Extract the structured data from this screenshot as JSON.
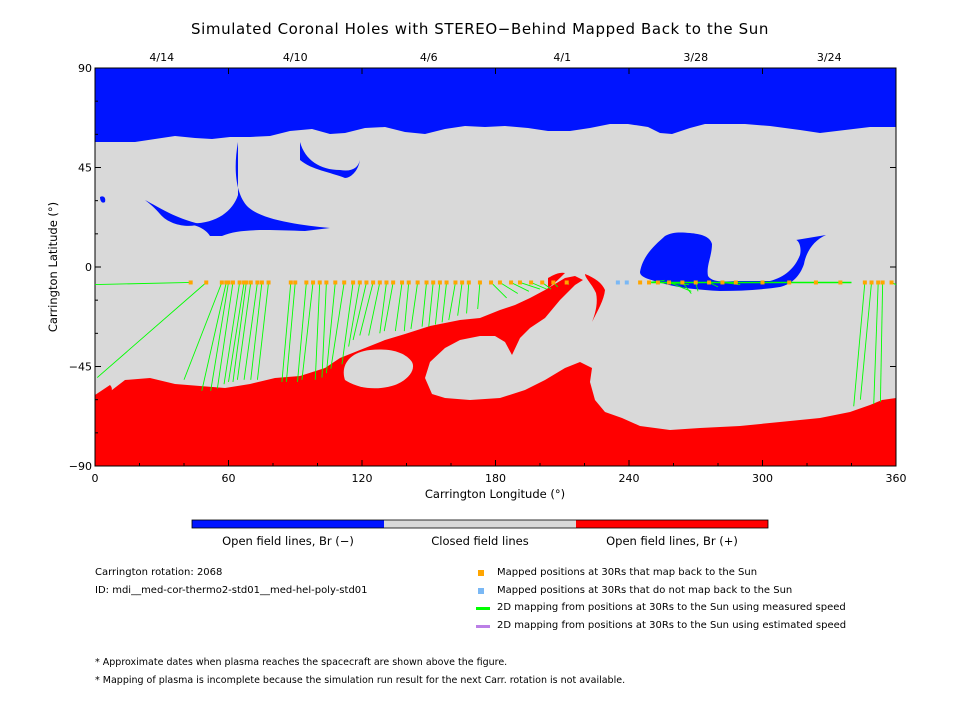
{
  "title": "Simulated Coronal Holes with STEREO−Behind Mapped Back to the Sun",
  "colors": {
    "open_negative": "#0014ff",
    "closed": "#d9d9d9",
    "open_positive": "#ff0000",
    "mapped_dot": "#ffa500",
    "unmapped_dot": "#7ab8f5",
    "measured_speed_line": "#00ff00",
    "estimated_speed_line": "#bb7fe6"
  },
  "chart_data": {
    "type": "heatmap",
    "xlabel": "Carrington Longitude (°)",
    "ylabel": "Carrington Latitude (°)",
    "xlim": [
      0,
      360
    ],
    "ylim": [
      -90,
      90
    ],
    "x_ticks": [
      "0",
      "60",
      "120",
      "180",
      "240",
      "300",
      "360"
    ],
    "y_ticks": [
      "90",
      "45",
      "0",
      "−45",
      "−90"
    ],
    "top_date_ticks": [
      {
        "label": "4/14",
        "lon": 30
      },
      {
        "label": "4/10",
        "lon": 90
      },
      {
        "label": "4/6",
        "lon": 150
      },
      {
        "label": "4/1",
        "lon": 210
      },
      {
        "label": "3/28",
        "lon": 270
      },
      {
        "label": "3/24",
        "lon": 330
      }
    ],
    "colorbar": [
      "Open field lines, Br (−)",
      "Closed field lines",
      "Open field lines, Br (+)"
    ],
    "spacecraft_latitude": -7,
    "mapped_points": [
      {
        "lon": 43,
        "foot_lon": -2,
        "foot_lat": -8
      },
      {
        "lon": 50,
        "foot_lon": 1,
        "foot_lat": -50
      },
      {
        "lon": 57,
        "foot_lon": 40,
        "foot_lat": -51
      },
      {
        "lon": 59,
        "foot_lon": 48,
        "foot_lat": -56
      },
      {
        "lon": 60,
        "foot_lon": 52,
        "foot_lat": -56
      },
      {
        "lon": 62,
        "foot_lon": 55,
        "foot_lat": -55
      },
      {
        "lon": 65,
        "foot_lon": 58,
        "foot_lat": -53
      },
      {
        "lon": 67,
        "foot_lon": 60,
        "foot_lat": -52
      },
      {
        "lon": 68,
        "foot_lon": 62,
        "foot_lat": -52
      },
      {
        "lon": 70,
        "foot_lon": 64,
        "foot_lat": -51
      },
      {
        "lon": 73,
        "foot_lon": 67,
        "foot_lat": -51
      },
      {
        "lon": 75,
        "foot_lon": 70,
        "foot_lat": -51
      },
      {
        "lon": 78,
        "foot_lon": 73,
        "foot_lat": -51
      },
      {
        "lon": 88,
        "foot_lon": 84,
        "foot_lat": -52
      },
      {
        "lon": 90,
        "foot_lon": 86,
        "foot_lat": -52
      },
      {
        "lon": 95,
        "foot_lon": 91,
        "foot_lat": -52
      },
      {
        "lon": 98,
        "foot_lon": 93,
        "foot_lat": -51
      },
      {
        "lon": 101,
        "foot_lon": 99,
        "foot_lat": -51
      },
      {
        "lon": 104,
        "foot_lon": 102,
        "foot_lat": -50
      },
      {
        "lon": 108,
        "foot_lon": 104,
        "foot_lat": -48
      },
      {
        "lon": 112,
        "foot_lon": 106,
        "foot_lat": -46
      },
      {
        "lon": 116,
        "foot_lon": 111,
        "foot_lat": -44
      },
      {
        "lon": 119,
        "foot_lon": 114,
        "foot_lat": -36
      },
      {
        "lon": 122,
        "foot_lon": 116,
        "foot_lat": -33
      },
      {
        "lon": 125,
        "foot_lon": 119,
        "foot_lat": -31
      },
      {
        "lon": 128,
        "foot_lon": 123,
        "foot_lat": -31
      },
      {
        "lon": 131,
        "foot_lon": 128,
        "foot_lat": -30
      },
      {
        "lon": 134,
        "foot_lon": 130,
        "foot_lat": -29
      },
      {
        "lon": 138,
        "foot_lon": 135,
        "foot_lat": -29
      },
      {
        "lon": 141,
        "foot_lon": 139,
        "foot_lat": -29
      },
      {
        "lon": 145,
        "foot_lon": 142,
        "foot_lat": -28
      },
      {
        "lon": 149,
        "foot_lon": 147,
        "foot_lat": -27
      },
      {
        "lon": 152,
        "foot_lon": 150,
        "foot_lat": -27
      },
      {
        "lon": 155,
        "foot_lon": 153,
        "foot_lat": -26
      },
      {
        "lon": 158,
        "foot_lon": 156,
        "foot_lat": -25
      },
      {
        "lon": 162,
        "foot_lon": 159,
        "foot_lat": -24
      },
      {
        "lon": 165,
        "foot_lon": 163,
        "foot_lat": -22
      },
      {
        "lon": 168,
        "foot_lon": 167,
        "foot_lat": -21
      },
      {
        "lon": 173,
        "foot_lon": 172,
        "foot_lat": -19
      },
      {
        "lon": 178,
        "foot_lon": 185,
        "foot_lat": -14
      },
      {
        "lon": 182,
        "foot_lon": 190,
        "foot_lat": -12
      },
      {
        "lon": 187,
        "foot_lon": 195,
        "foot_lat": -11
      },
      {
        "lon": 191,
        "foot_lon": 200,
        "foot_lat": -10
      },
      {
        "lon": 196,
        "foot_lon": 203,
        "foot_lat": -10
      },
      {
        "lon": 201,
        "foot_lon": 205,
        "foot_lat": -10
      },
      {
        "lon": 206,
        "foot_lon": 208,
        "foot_lat": -9
      },
      {
        "lon": 212,
        "foot_lon": 213,
        "foot_lat": -8
      },
      {
        "lon": 245,
        "foot_lon": 245,
        "foot_lat": -7
      },
      {
        "lon": 249,
        "foot_lon": 256,
        "foot_lat": -6
      },
      {
        "lon": 253,
        "foot_lon": 267,
        "foot_lat": -8
      },
      {
        "lon": 258,
        "foot_lon": 268,
        "foot_lat": -11
      },
      {
        "lon": 264,
        "foot_lon": 268,
        "foot_lat": -12
      },
      {
        "lon": 270,
        "foot_lon": 271,
        "foot_lat": -11
      },
      {
        "lon": 276,
        "foot_lon": 280,
        "foot_lat": -9
      },
      {
        "lon": 282,
        "foot_lon": 290,
        "foot_lat": -8
      },
      {
        "lon": 288,
        "foot_lon": 300,
        "foot_lat": -7
      },
      {
        "lon": 300,
        "foot_lon": 310,
        "foot_lat": -7
      },
      {
        "lon": 312,
        "foot_lon": 320,
        "foot_lat": -7
      },
      {
        "lon": 324,
        "foot_lon": 326,
        "foot_lat": -7
      },
      {
        "lon": 335,
        "foot_lon": 336,
        "foot_lat": -7
      },
      {
        "lon": 346,
        "foot_lon": 341,
        "foot_lat": -63
      },
      {
        "lon": 349,
        "foot_lon": 344,
        "foot_lat": -60
      },
      {
        "lon": 352,
        "foot_lon": 350,
        "foot_lat": -62
      },
      {
        "lon": 354,
        "foot_lon": 353,
        "foot_lat": -61
      },
      {
        "lon": 358,
        "foot_lon": 360,
        "foot_lat": -8
      }
    ],
    "unmapped_points": [
      {
        "lon": 235
      },
      {
        "lon": 239
      }
    ]
  },
  "colorbar_labels": {
    "negative": "Open field lines, Br (−)",
    "closed": "Closed field lines",
    "positive": "Open field lines, Br (+)"
  },
  "info": {
    "rotation": "Carrington rotation: 2068",
    "id": "ID: mdi__med-cor-thermo2-std01__med-hel-poly-std01"
  },
  "legend": {
    "mapped": "Mapped positions at 30Rs that map back to the Sun",
    "unmapped": "Mapped positions at 30Rs that do not map back to the Sun",
    "measured": "2D mapping from positions at 30Rs to the Sun using measured speed",
    "estimated": "2D mapping from positions at 30Rs to the Sun using estimated speed"
  },
  "footnotes": [
    "* Approximate dates when plasma reaches the spacecraft are shown above the figure.",
    "* Mapping of plasma is incomplete because the simulation run result for the next Carr. rotation is not available."
  ]
}
